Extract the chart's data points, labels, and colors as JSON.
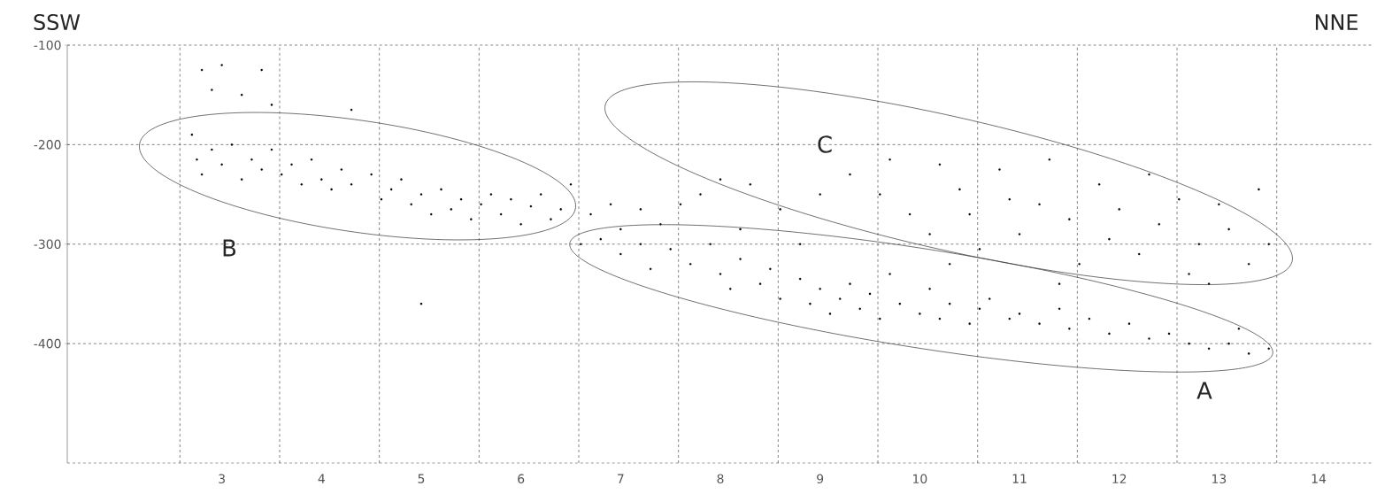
{
  "chart_data": {
    "type": "scatter",
    "color": "#000000",
    "grid": true,
    "annotations": [
      "SSW",
      "NNE",
      "A",
      "B",
      "C"
    ],
    "xlim": [
      1.45,
      14.55
    ],
    "ylim": [
      -520,
      -100
    ],
    "xticks": [
      {
        "value": 2.58,
        "label": null
      },
      3,
      {
        "value": 3.58,
        "label": null
      },
      4,
      {
        "value": 4.58,
        "label": null
      },
      5,
      {
        "value": 5.58,
        "label": null
      },
      6,
      {
        "value": 6.58,
        "label": null
      },
      7,
      {
        "value": 7.58,
        "label": null
      },
      8,
      {
        "value": 8.58,
        "label": null
      },
      9,
      {
        "value": 9.58,
        "label": null
      },
      10,
      {
        "value": 10.58,
        "label": null
      },
      11,
      {
        "value": 11.58,
        "label": null
      },
      12,
      {
        "value": 12.58,
        "label": null
      },
      13,
      {
        "value": 13.58,
        "label": null
      },
      14
    ],
    "yticks": [
      -100,
      -200,
      -300,
      -400
    ],
    "x": [
      2.7,
      2.75,
      2.8,
      2.9,
      3.0,
      3.1,
      3.2,
      3.3,
      3.4,
      3.5,
      3.6,
      3.7,
      3.8,
      3.9,
      4.0,
      4.1,
      4.2,
      4.3,
      4.5,
      4.6,
      4.7,
      4.8,
      4.9,
      5.0,
      5.1,
      5.2,
      5.3,
      5.4,
      5.5,
      5.6,
      5.7,
      5.8,
      5.9,
      6.0,
      6.1,
      6.2,
      6.3,
      6.4,
      6.5,
      2.8,
      3.0,
      3.2,
      3.4,
      3.5,
      2.9,
      4.3,
      5.0,
      6.7,
      6.9,
      7.0,
      7.2,
      7.4,
      7.6,
      7.8,
      6.6,
      6.8,
      7.0,
      7.2,
      7.3,
      7.5,
      7.7,
      7.9,
      8.0,
      8.1,
      8.2,
      8.4,
      8.5,
      8.6,
      8.8,
      8.9,
      9.0,
      9.1,
      9.2,
      9.3,
      9.4,
      9.5,
      9.6,
      9.7,
      9.8,
      10.0,
      10.1,
      10.2,
      10.3,
      10.5,
      10.6,
      10.7,
      10.9,
      11.0,
      11.2,
      11.4,
      11.5,
      11.7,
      11.9,
      12.1,
      12.3,
      12.5,
      12.7,
      12.9,
      13.1,
      13.3,
      13.5,
      13.2,
      8.0,
      8.3,
      8.6,
      9.0,
      9.3,
      9.6,
      9.7,
      9.9,
      10.1,
      10.2,
      10.4,
      10.5,
      10.6,
      10.8,
      10.9,
      11.0,
      11.2,
      11.3,
      11.5,
      11.6,
      11.8,
      11.9,
      12.0,
      12.2,
      12.3,
      12.4,
      12.6,
      12.7,
      12.8,
      13.0,
      13.1,
      13.3,
      13.4,
      13.5,
      12.9,
      10.3,
      11.4,
      8.2,
      8.8
    ],
    "values": [
      -190,
      -215,
      -230,
      -205,
      -220,
      -200,
      -235,
      -215,
      -225,
      -205,
      -230,
      -220,
      -240,
      -215,
      -235,
      -245,
      -225,
      -240,
      -230,
      -255,
      -245,
      -235,
      -260,
      -250,
      -270,
      -245,
      -265,
      -255,
      -275,
      -260,
      -250,
      -270,
      -255,
      -280,
      -262,
      -250,
      -275,
      -265,
      -240,
      -125,
      -120,
      -150,
      -125,
      -160,
      -145,
      -165,
      -360,
      -270,
      -260,
      -285,
      -265,
      -280,
      -260,
      -250,
      -300,
      -295,
      -310,
      -300,
      -325,
      -305,
      -320,
      -300,
      -330,
      -345,
      -315,
      -340,
      -325,
      -355,
      -335,
      -360,
      -345,
      -370,
      -355,
      -340,
      -365,
      -350,
      -375,
      -330,
      -360,
      -370,
      -345,
      -375,
      -360,
      -380,
      -365,
      -355,
      -375,
      -370,
      -380,
      -365,
      -385,
      -375,
      -390,
      -380,
      -395,
      -390,
      -400,
      -405,
      -400,
      -410,
      -405,
      -385,
      -235,
      -240,
      -265,
      -250,
      -230,
      -250,
      -215,
      -270,
      -290,
      -220,
      -245,
      -270,
      -305,
      -225,
      -255,
      -290,
      -260,
      -215,
      -275,
      -320,
      -240,
      -295,
      -265,
      -310,
      -230,
      -280,
      -255,
      -330,
      -300,
      -260,
      -285,
      -320,
      -245,
      -300,
      -340,
      -320,
      -340,
      -285,
      -300
    ]
  }
}
